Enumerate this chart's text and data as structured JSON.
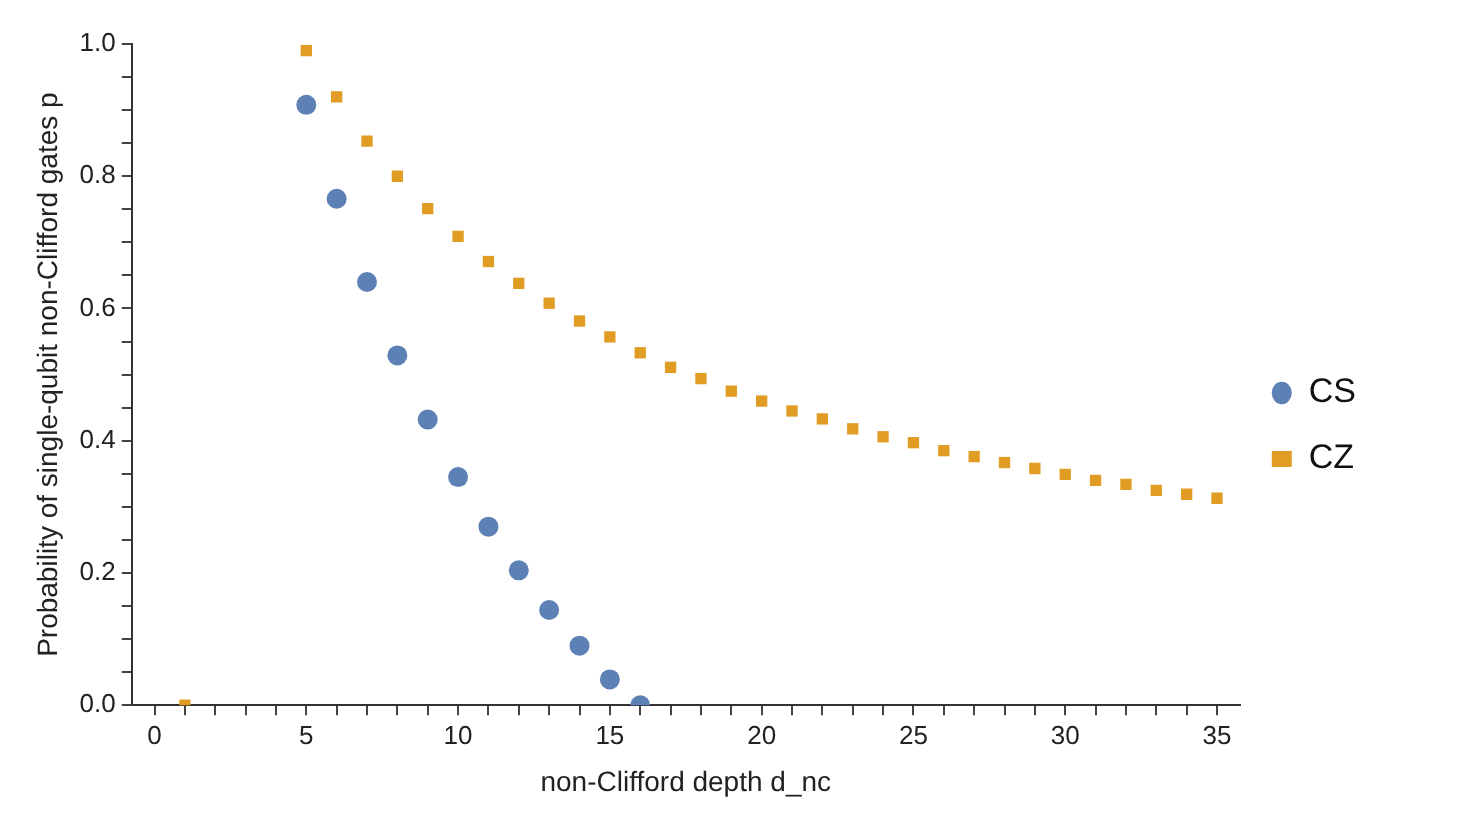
{
  "chart_data": {
    "type": "scatter",
    "xlabel": "non-Clifford depth d_nc",
    "ylabel": "Probability of single-qubit non-Clifford gates p",
    "xlim": [
      -0.75,
      35.75
    ],
    "ylim": [
      0,
      1
    ],
    "xticks": [
      0,
      {
        "value": 1,
        "label": null
      },
      {
        "value": 2,
        "label": null
      },
      {
        "value": 3,
        "label": null
      },
      {
        "value": 4,
        "label": null
      },
      5,
      {
        "value": 6,
        "label": null
      },
      {
        "value": 7,
        "label": null
      },
      {
        "value": 8,
        "label": null
      },
      {
        "value": 9,
        "label": null
      },
      10,
      {
        "value": 11,
        "label": null
      },
      {
        "value": 12,
        "label": null
      },
      {
        "value": 13,
        "label": null
      },
      {
        "value": 14,
        "label": null
      },
      15,
      {
        "value": 16,
        "label": null
      },
      {
        "value": 17,
        "label": null
      },
      {
        "value": 18,
        "label": null
      },
      {
        "value": 19,
        "label": null
      },
      20,
      {
        "value": 21,
        "label": null
      },
      {
        "value": 22,
        "label": null
      },
      {
        "value": 23,
        "label": null
      },
      {
        "value": 24,
        "label": null
      },
      25,
      {
        "value": 26,
        "label": null
      },
      {
        "value": 27,
        "label": null
      },
      {
        "value": 28,
        "label": null
      },
      {
        "value": 29,
        "label": null
      },
      30,
      {
        "value": 31,
        "label": null
      },
      {
        "value": 32,
        "label": null
      },
      {
        "value": 33,
        "label": null
      },
      {
        "value": 34,
        "label": null
      },
      35
    ],
    "yticks": [
      {
        "value": 0,
        "label": "0.0"
      },
      {
        "value": 0.05,
        "label": null
      },
      {
        "value": 0.1,
        "label": null
      },
      {
        "value": 0.15,
        "label": null
      },
      0.2,
      {
        "value": 0.25,
        "label": null
      },
      {
        "value": 0.3,
        "label": null
      },
      {
        "value": 0.35,
        "label": null
      },
      0.4,
      {
        "value": 0.45,
        "label": null
      },
      {
        "value": 0.5,
        "label": null
      },
      {
        "value": 0.55,
        "label": null
      },
      0.6,
      {
        "value": 0.65,
        "label": null
      },
      {
        "value": 0.7,
        "label": null
      },
      {
        "value": 0.75,
        "label": null
      },
      0.8,
      {
        "value": 0.85,
        "label": null
      },
      {
        "value": 0.9,
        "label": null
      },
      {
        "value": 0.95,
        "label": null
      },
      {
        "value": 1,
        "label": "1.0"
      }
    ],
    "grid": false,
    "legend": "right",
    "series": [
      {
        "name": "CS",
        "color": "#5e81b5",
        "marker": "circle",
        "x": [
          5,
          6,
          7,
          8,
          9,
          10,
          11,
          12,
          13,
          14,
          15,
          16
        ],
        "values": [
          0.908,
          0.766,
          0.64,
          0.529,
          0.432,
          0.345,
          0.27,
          0.204,
          0.144,
          0.09,
          0.039,
          0
        ]
      },
      {
        "name": "CZ",
        "color": "#e19c24",
        "marker": "square",
        "x": [
          1,
          5,
          6,
          7,
          8,
          9,
          10,
          11,
          12,
          13,
          14,
          15,
          16,
          17,
          18,
          19,
          20,
          21,
          22,
          23,
          24,
          25,
          26,
          27,
          28,
          29,
          30,
          31,
          32,
          33,
          34,
          35
        ],
        "values": [
          0,
          0.99,
          0.92,
          0.853,
          0.8,
          0.751,
          0.709,
          0.671,
          0.638,
          0.608,
          0.581,
          0.557,
          0.533,
          0.511,
          0.494,
          0.475,
          0.46,
          0.445,
          0.433,
          0.418,
          0.406,
          0.397,
          0.385,
          0.376,
          0.367,
          0.358,
          0.349,
          0.34,
          0.334,
          0.325,
          0.319,
          0.313
        ]
      }
    ]
  }
}
